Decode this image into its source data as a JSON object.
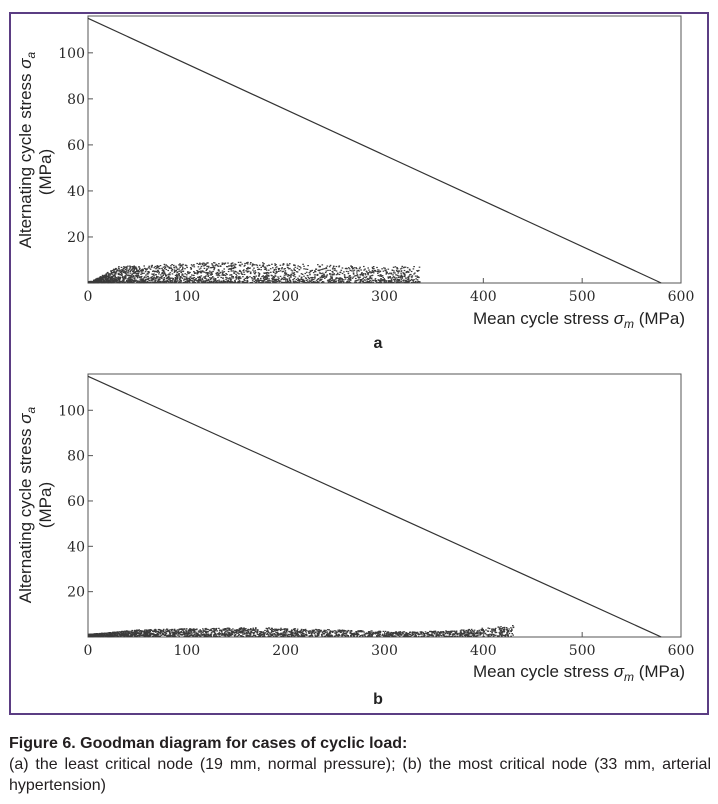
{
  "figure": {
    "caption_title": "Figure 6. Goodman diagram for cases of cyclic load:",
    "caption_text": "(a) the least critical node (19 mm, normal pressure); (b) the most critical node (33 mm, arterial hypertension)",
    "frame_color": "#5b3d83"
  },
  "chart_data": [
    {
      "type": "scatter",
      "panel_label": "a",
      "xlabel_prefix": "Mean cycle stress ",
      "xlabel_symbol": "σ",
      "xlabel_subscript": "m",
      "xlabel_suffix": " (MPa)",
      "ylabel_prefix": "Alternating cycle stress ",
      "ylabel_symbol": "σ",
      "ylabel_subscript": "a",
      "ylabel_unit": "(MPa)",
      "xlim": [
        0,
        600
      ],
      "ylim": [
        0,
        116
      ],
      "xticks": [
        0,
        100,
        200,
        300,
        400,
        500,
        600
      ],
      "yticks": [
        20,
        40,
        60,
        80,
        100
      ],
      "goodman_line": {
        "x": [
          0,
          580
        ],
        "y": [
          115,
          0
        ]
      },
      "point_cloud_envelope": [
        [
          5,
          1
        ],
        [
          30,
          7
        ],
        [
          80,
          8
        ],
        [
          150,
          9
        ],
        [
          220,
          8
        ],
        [
          280,
          7
        ],
        [
          310,
          7
        ],
        [
          335,
          7.5
        ],
        [
          320,
          3
        ],
        [
          250,
          1
        ]
      ],
      "grid": false
    },
    {
      "type": "scatter",
      "panel_label": "b",
      "xlabel_prefix": "Mean cycle stress ",
      "xlabel_symbol": "σ",
      "xlabel_subscript": "m",
      "xlabel_suffix": " (MPa)",
      "ylabel_prefix": "Alternating cycle stress ",
      "ylabel_symbol": "σ",
      "ylabel_subscript": "a",
      "ylabel_unit": "(MPa)",
      "xlim": [
        0,
        600
      ],
      "ylim": [
        0,
        116
      ],
      "xticks": [
        0,
        100,
        200,
        300,
        400,
        500,
        600
      ],
      "yticks": [
        20,
        40,
        60,
        80,
        100
      ],
      "goodman_line": {
        "x": [
          0,
          580
        ],
        "y": [
          115,
          0
        ]
      },
      "point_cloud_envelope": [
        [
          0,
          1
        ],
        [
          50,
          3
        ],
        [
          100,
          3.5
        ],
        [
          170,
          4
        ],
        [
          250,
          3
        ],
        [
          330,
          2
        ],
        [
          380,
          3
        ],
        [
          420,
          4.5
        ],
        [
          430,
          5
        ]
      ],
      "grid": false
    }
  ]
}
